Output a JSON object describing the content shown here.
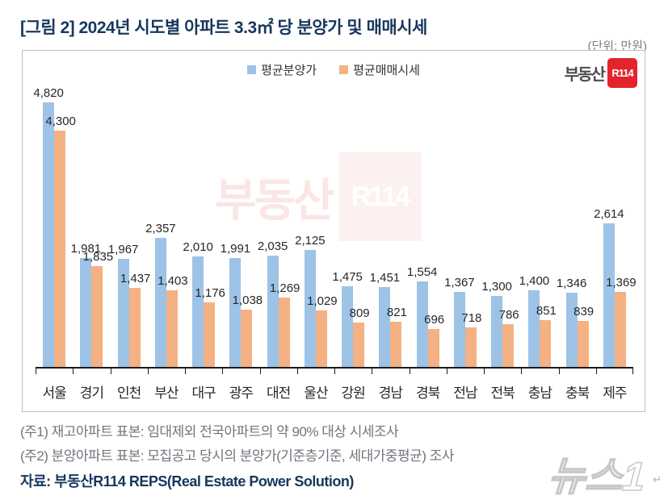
{
  "page": {
    "title": "[그림 2] 2024년 시도별 아파트 3.3㎡ 당 분양가 및 매매시세",
    "unit_label": "(단위: 만원)",
    "notes": [
      "(주1) 재고아파트 표본: 임대제외 전국아파트의 약 90% 대상 시세조사",
      "(주2) 분양아파트 표본: 모집공고 당시의 분양가(기준층기준, 세대가중평균) 조사"
    ],
    "source": "자료: 부동산R114 REPS(Real Estate Power Solution)",
    "news_watermark": "뉴스1",
    "return_mark": "↵",
    "logo": {
      "text": "부동산",
      "badge": "R114"
    }
  },
  "colors": {
    "presale_bar": "#9DC3E6",
    "market_bar": "#F4B183",
    "title_navy": "#17375E",
    "logo_red": "#E3242B",
    "chart_border": "#bfbfbf",
    "axis": "#1a1a1a",
    "note_gray": "#73737e"
  },
  "chart_data": {
    "type": "bar",
    "title": "2024년 시도별 아파트 3.3㎡ 당 분양가 및 매매시세",
    "unit": "만원",
    "categories": [
      "서울",
      "경기",
      "인천",
      "부산",
      "대구",
      "광주",
      "대전",
      "울산",
      "강원",
      "경남",
      "경북",
      "전남",
      "전북",
      "충남",
      "충북",
      "제주"
    ],
    "series": [
      {
        "name": "평균분양가",
        "color": "#9DC3E6",
        "values": [
          4820,
          1981,
          1967,
          2357,
          2010,
          1991,
          2035,
          2125,
          1475,
          1451,
          1554,
          1367,
          1300,
          1400,
          1346,
          2614
        ]
      },
      {
        "name": "평균매매시세",
        "color": "#F4B183",
        "values": [
          4300,
          1835,
          1437,
          1403,
          1176,
          1038,
          1269,
          1029,
          809,
          821,
          696,
          718,
          786,
          851,
          839,
          1369
        ]
      }
    ],
    "ylim": [
      0,
      5000
    ],
    "grid": false,
    "legend_position": "top-center",
    "value_labels": true
  }
}
